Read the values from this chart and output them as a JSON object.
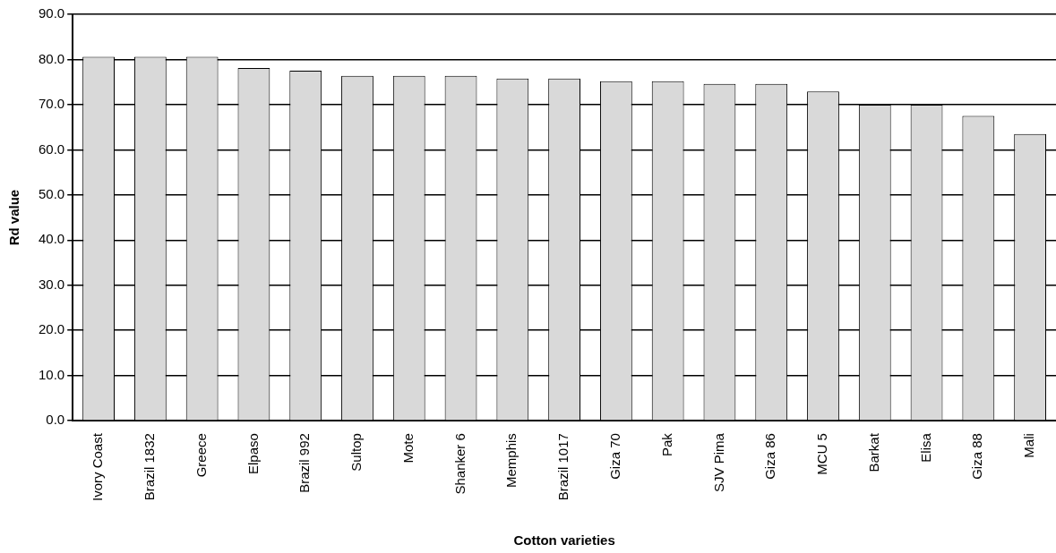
{
  "chart_data": {
    "type": "bar",
    "xlabel": "Cotton varieties",
    "ylabel": "Rd value",
    "categories": [
      "Ivory Coast",
      "Brazil 1832",
      "Greece",
      "Elpaso",
      "Brazil 992",
      "Sultop",
      "Mote",
      "Shanker 6",
      "Memphis",
      "Brazil 1017",
      "Giza 70",
      "Pak",
      "SJV Pima",
      "Giza 86",
      "MCU 5",
      "Barkat",
      "Elisa",
      "Giza 88",
      "Mali"
    ],
    "values": [
      80.6,
      80.6,
      80.6,
      78.1,
      77.5,
      76.4,
      76.4,
      76.4,
      75.8,
      75.8,
      75.2,
      75.2,
      74.6,
      74.6,
      72.9,
      70.0,
      70.0,
      67.5,
      63.5
    ],
    "color": "#d9d9d9",
    "ylim": [
      0,
      90
    ],
    "yticks": [
      {
        "value": 0,
        "label": "0.0"
      },
      {
        "value": 10,
        "label": "10.0"
      },
      {
        "value": 20,
        "label": "20.0"
      },
      {
        "value": 30,
        "label": "30.0"
      },
      {
        "value": 40,
        "label": "40.0"
      },
      {
        "value": 50,
        "label": "50.0"
      },
      {
        "value": 60,
        "label": "60.0"
      },
      {
        "value": 70,
        "label": "70.0"
      },
      {
        "value": 80,
        "label": "80.0"
      },
      {
        "value": 90,
        "label": "90.0"
      }
    ],
    "grid": "y",
    "legend": false
  }
}
